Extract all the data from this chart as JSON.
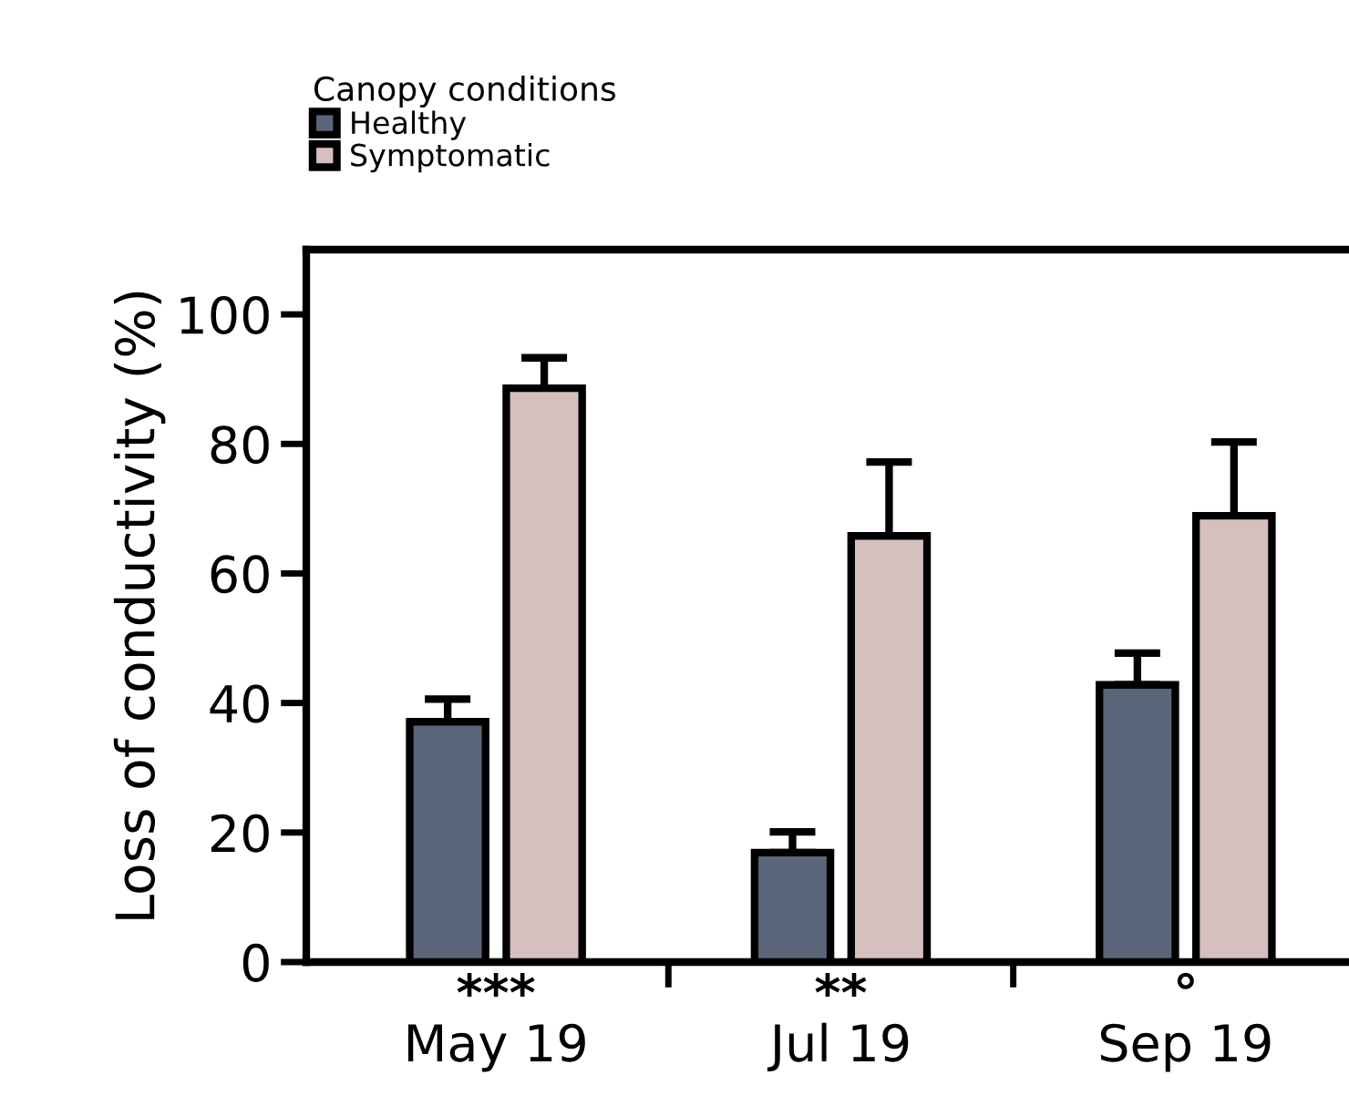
{
  "chart_data": {
    "type": "bar",
    "ylabel": "Loss of conductivity (%)",
    "legend_title": "Canopy conditions",
    "categories": [
      "May 19",
      "Jul 19",
      "Sep 19"
    ],
    "series": [
      {
        "name": "Healthy",
        "color": "#5b6579",
        "values": [
          37.1,
          16.9,
          42.8
        ],
        "errors": [
          3.5,
          3.2,
          4.9
        ]
      },
      {
        "name": "Symptomatic",
        "color": "#d6c0bf",
        "values": [
          88.6,
          65.8,
          68.9
        ],
        "errors": [
          4.7,
          11.4,
          11.4
        ]
      }
    ],
    "ylim": [
      0,
      110
    ],
    "yticks": [
      0,
      20,
      40,
      60,
      80,
      100
    ],
    "grid": false,
    "legend": "top left",
    "annotations": [
      "***",
      "**",
      "°"
    ]
  }
}
